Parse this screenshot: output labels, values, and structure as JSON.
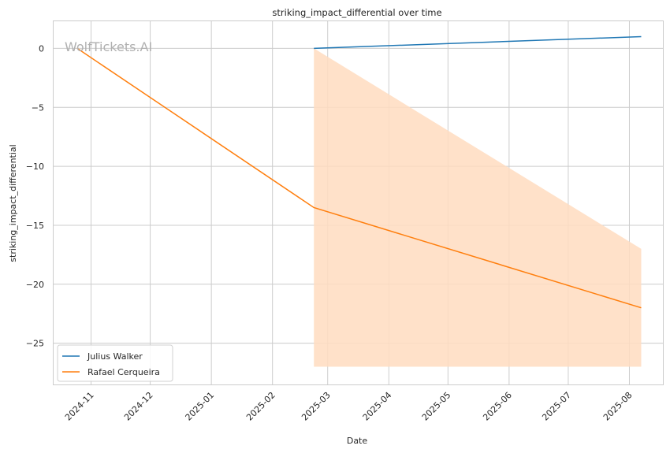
{
  "chart_data": {
    "type": "line",
    "title": "striking_impact_differential over time",
    "xlabel": "Date",
    "ylabel": "striking_impact_differential",
    "watermark": "WolfTickets.AI",
    "x_tick_labels": [
      "2024-11",
      "2024-12",
      "2025-01",
      "2025-02",
      "2025-03",
      "2025-04",
      "2025-05",
      "2025-06",
      "2025-07",
      "2025-08"
    ],
    "y_tick_labels": [
      "0",
      "−5",
      "−10",
      "−15",
      "−20",
      "−25"
    ],
    "y_ticks": [
      0,
      -5,
      -10,
      -15,
      -20,
      -25
    ],
    "xlim": [
      "2024-10-13",
      "2025-08-18"
    ],
    "ylim": [
      -28.5,
      2.3
    ],
    "grid": true,
    "legend_position": "lower-left",
    "series": [
      {
        "name": "Julius Walker",
        "color": "#1f77b4",
        "x": [
          "2025-02-22",
          "2025-08-07"
        ],
        "y": [
          0,
          1
        ]
      },
      {
        "name": "Rafael Cerqueira",
        "color": "#ff7f0e",
        "x": [
          "2024-10-25",
          "2025-02-22",
          "2025-08-07"
        ],
        "y": [
          0,
          -13.5,
          -22
        ],
        "band": {
          "color": "#ffdcbf",
          "x": [
            "2025-02-22",
            "2025-08-07"
          ],
          "upper": [
            0,
            -17
          ],
          "lower": [
            -27,
            -27
          ]
        }
      }
    ]
  }
}
